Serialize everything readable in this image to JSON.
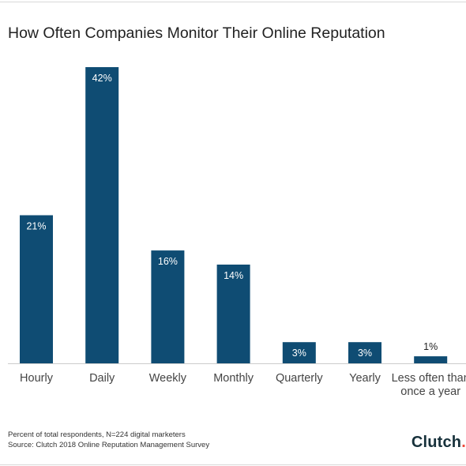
{
  "title": "How Often Companies Monitor Their Online Reputation",
  "footnote": "Percent of total respondents, N=224 digital marketers",
  "source": "Source: Clutch 2018 Online Reputation Management Survey",
  "brand": {
    "name": "Clutch",
    "dot": "."
  },
  "colors": {
    "bar": "#0f4c73",
    "label_on_bar": "#ffffff",
    "label_above_bar": "#222222",
    "axis": "#cccccc",
    "brand_dot": "#ef4a3c"
  },
  "chart_data": {
    "type": "bar",
    "title": "How Often Companies Monitor Their Online Reputation",
    "categories": [
      [
        "Hourly"
      ],
      [
        "Daily"
      ],
      [
        "Weekly"
      ],
      [
        "Monthly"
      ],
      [
        "Quarterly"
      ],
      [
        "Yearly"
      ],
      [
        "Less often than",
        "once a year"
      ]
    ],
    "values": [
      21,
      42,
      16,
      14,
      3,
      3,
      1
    ],
    "value_labels": [
      "21%",
      "42%",
      "16%",
      "14%",
      "3%",
      "3%",
      "1%"
    ],
    "unit": "%",
    "ylim": [
      0,
      45
    ],
    "grid": false,
    "legend": "none"
  }
}
